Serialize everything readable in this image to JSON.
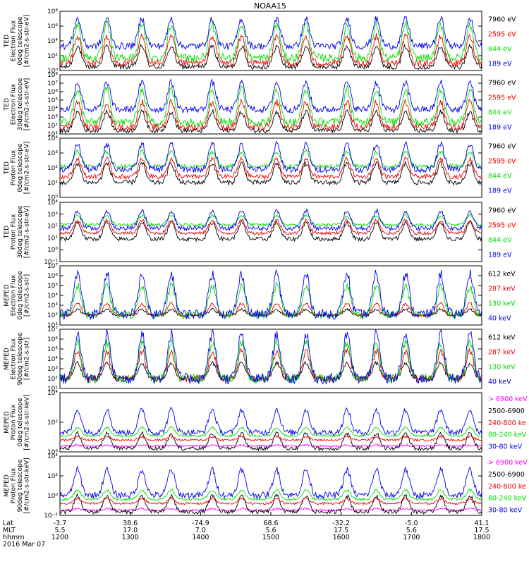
{
  "chart_data": {
    "type": "line",
    "title": "NOAA15",
    "colors": {
      "black": "#000000",
      "red": "#ee0000",
      "green": "#00dd00",
      "blue": "#0000ee",
      "magenta": "#ff00ff"
    },
    "panels": [
      {
        "ylabel": [
          "TED",
          "Electron Flux",
          "0deg telescope",
          "[#/cm2-s-str-eV]"
        ],
        "ylim_exp": [
          0,
          8
        ],
        "ticks": [
          "10⁰",
          "10²",
          "10⁴",
          "10⁶",
          "10⁸"
        ],
        "legend": [
          {
            "label": "7960 eV",
            "color": "#000000"
          },
          {
            "label": "2595 eV",
            "color": "#ee0000"
          },
          {
            "label": "844 eV",
            "color": "#00dd00"
          },
          {
            "label": "189 eV",
            "color": "#0000ee"
          }
        ],
        "series": [
          {
            "color": "#000000",
            "base": 0.5,
            "peak": 3.3
          },
          {
            "color": "#ee0000",
            "base": 1.0,
            "peak": 4.6
          },
          {
            "color": "#00dd00",
            "base": 1.7,
            "peak": 6.2
          },
          {
            "color": "#0000ee",
            "base": 3.3,
            "peak": 7.0
          }
        ]
      },
      {
        "ylabel": [
          "TED",
          "Electron Flux",
          "30deg telescope",
          "[#/cm2-s-str-eV]"
        ],
        "ylim_exp": [
          1,
          8
        ],
        "ticks": [
          "10¹",
          "10²",
          "10³",
          "10⁴",
          "10⁵",
          "10⁶",
          "10⁷",
          "10⁸"
        ],
        "legend": [
          {
            "label": "7960 eV",
            "color": "#000000"
          },
          {
            "label": "2595 eV",
            "color": "#ee0000"
          },
          {
            "label": "844 eV",
            "color": "#00dd00"
          },
          {
            "label": "189 eV",
            "color": "#0000ee"
          }
        ],
        "series": [
          {
            "color": "#000000",
            "base": 1.4,
            "peak": 3.6
          },
          {
            "color": "#ee0000",
            "base": 1.8,
            "peak": 4.8
          },
          {
            "color": "#00dd00",
            "base": 2.4,
            "peak": 6.3
          },
          {
            "color": "#0000ee",
            "base": 3.9,
            "peak": 7.1
          }
        ]
      },
      {
        "ylabel": [
          "TED",
          "Proton Flux",
          "0deg telescope",
          "[#/cm2-s-str-eV]"
        ],
        "ylim_exp": [
          0,
          4
        ],
        "ticks": [
          "10⁰",
          "10¹",
          "10²",
          "10³",
          "10⁴"
        ],
        "legend": [
          {
            "label": "7960 eV",
            "color": "#000000"
          },
          {
            "label": "2595 eV",
            "color": "#ee0000"
          },
          {
            "label": "844 eV",
            "color": "#00dd00"
          },
          {
            "label": "189 eV",
            "color": "#0000ee"
          }
        ],
        "series": [
          {
            "color": "#000000",
            "base": 1.0,
            "peak": 2.3
          },
          {
            "color": "#ee0000",
            "base": 1.4,
            "peak": 2.6
          },
          {
            "color": "#00dd00",
            "base": 2.1,
            "peak": 3.1
          },
          {
            "color": "#0000ee",
            "base": 1.9,
            "peak": 3.6
          }
        ]
      },
      {
        "ylabel": [
          "TED",
          "Proton Flux",
          "30deg telescope",
          "[#/cm2-s-str-eV]"
        ],
        "ylim_exp": [
          -1,
          4
        ],
        "ticks": [
          "10⁻¹",
          "10⁰",
          "10¹",
          "10²",
          "10³",
          "10⁴"
        ],
        "legend": [
          {
            "label": "7960 eV",
            "color": "#000000"
          },
          {
            "label": "2595 eV",
            "color": "#ee0000"
          },
          {
            "label": "844 eV",
            "color": "#00dd00"
          },
          {
            "label": "189 eV",
            "color": "#0000ee"
          }
        ],
        "series": [
          {
            "color": "#000000",
            "base": 0.9,
            "peak": 2.3
          },
          {
            "color": "#ee0000",
            "base": 1.4,
            "peak": 2.5
          },
          {
            "color": "#00dd00",
            "base": 2.1,
            "peak": 2.9
          },
          {
            "color": "#0000ee",
            "base": 1.8,
            "peak": 3.3
          }
        ]
      },
      {
        "ylabel": [
          "MEPED",
          "Electron Flux",
          "0deg telescope",
          "[#/cm2-s-str]"
        ],
        "ylim_exp": [
          1,
          7
        ],
        "ticks": [
          "10¹",
          "10²",
          "10³",
          "10⁴",
          "10⁵",
          "10⁶",
          "10⁷"
        ],
        "legend": [
          {
            "label": "612 keV",
            "color": "#000000"
          },
          {
            "label": "287 keV",
            "color": "#ee0000"
          },
          {
            "label": "130 keV",
            "color": "#00dd00"
          },
          {
            "label": "40 keV",
            "color": "#0000ee"
          }
        ],
        "series": [
          {
            "color": "#000000",
            "base": 2.0,
            "peak": 2.6
          },
          {
            "color": "#ee0000",
            "base": 2.0,
            "peak": 3.2
          },
          {
            "color": "#00dd00",
            "base": 2.0,
            "peak": 5.0
          },
          {
            "color": "#0000ee",
            "base": 2.1,
            "peak": 6.2
          }
        ]
      },
      {
        "ylabel": [
          "MEPED",
          "Electron Flux",
          "90deg telescope",
          "[#/cm2-s-str]"
        ],
        "ylim_exp": [
          1,
          7
        ],
        "ticks": [
          "10¹",
          "10²",
          "10³",
          "10⁴",
          "10⁵",
          "10⁶",
          "10⁷"
        ],
        "legend": [
          {
            "label": "612 keV",
            "color": "#000000"
          },
          {
            "label": "287 keV",
            "color": "#ee0000"
          },
          {
            "label": "130 keV",
            "color": "#00dd00"
          },
          {
            "label": "40 keV",
            "color": "#0000ee"
          }
        ],
        "series": [
          {
            "color": "#000000",
            "base": 2.0,
            "peak": 3.6
          },
          {
            "color": "#ee0000",
            "base": 2.0,
            "peak": 4.8
          },
          {
            "color": "#00dd00",
            "base": 2.0,
            "peak": 5.7
          },
          {
            "color": "#0000ee",
            "base": 2.0,
            "peak": 6.5
          }
        ]
      },
      {
        "ylabel": [
          "MEPED",
          "Proton Flux",
          "0deg telescope",
          "[#/cm2-s-str-keV]"
        ],
        "ylim_exp": [
          -2,
          5
        ],
        "ticks": [
          "10⁰",
          "10²",
          "10⁴"
        ],
        "legend": [
          {
            "label": "> 6900 keV",
            "color": "#ff00ff"
          },
          {
            "label": "2500-6900",
            "color": "#000000"
          },
          {
            "label": "240-800 ke",
            "color": "#ee0000"
          },
          {
            "label": "80-240 keV",
            "color": "#00dd00"
          },
          {
            "label": "30-80 keV",
            "color": "#0000ee"
          }
        ],
        "series": [
          {
            "color": "#ff00ff",
            "base": -1.3,
            "peak": -1.2
          },
          {
            "color": "#000000",
            "base": -1.6,
            "peak": 0.2
          },
          {
            "color": "#ee0000",
            "base": -0.6,
            "peak": -0.2
          },
          {
            "color": "#00dd00",
            "base": -0.1,
            "peak": 0.9
          },
          {
            "color": "#0000ee",
            "base": 0.3,
            "peak": 3.0
          }
        ]
      },
      {
        "ylabel": [
          "MEPED",
          "Proton Flux",
          "90deg telescope",
          "[#/cm2-s-str-keV]"
        ],
        "ylim_exp": [
          -2,
          5
        ],
        "ticks": [
          "10⁻²",
          "10⁰",
          "10²",
          "10⁴"
        ],
        "legend": [
          {
            "label": "> 6900 keV",
            "color": "#ff00ff"
          },
          {
            "label": "2500-6900",
            "color": "#000000"
          },
          {
            "label": "240-800 ke",
            "color": "#ee0000"
          },
          {
            "label": "80-240 keV",
            "color": "#00dd00"
          },
          {
            "label": "30-80 keV",
            "color": "#0000ee"
          }
        ],
        "series": [
          {
            "color": "#ff00ff",
            "base": -1.4,
            "peak": -1.2
          },
          {
            "color": "#000000",
            "base": -1.6,
            "peak": 0.3
          },
          {
            "color": "#ee0000",
            "base": -0.6,
            "peak": 0.0
          },
          {
            "color": "#00dd00",
            "base": -0.1,
            "peak": 1.0
          },
          {
            "color": "#0000ee",
            "base": 0.4,
            "peak": 3.4
          }
        ]
      }
    ],
    "xaxis": {
      "row_labels": [
        "Lat",
        "MLT",
        "hhmm",
        "2016 Mar 07"
      ],
      "ticks": [
        {
          "lat": "-3.7",
          "mlt": "5.5",
          "hhmm": "1200"
        },
        {
          "lat": "38.6",
          "mlt": "17.0",
          "hhmm": "1300"
        },
        {
          "lat": "-74.9",
          "mlt": "7.0",
          "hhmm": "1400"
        },
        {
          "lat": "68.6",
          "mlt": "5.6",
          "hhmm": "1500"
        },
        {
          "lat": "-32.2",
          "mlt": "17.5",
          "hhmm": "1600"
        },
        {
          "lat": "-5.0",
          "mlt": "5.6",
          "hhmm": "1700"
        },
        {
          "lat": "41.1",
          "mlt": "17.5",
          "hhmm": "1800"
        }
      ]
    },
    "passes_hhmm": [
      1215,
      1240,
      1310,
      1335,
      1410,
      1435,
      1505,
      1530,
      1605,
      1630,
      1655,
      1725,
      1750
    ]
  }
}
